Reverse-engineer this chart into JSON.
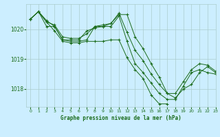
{
  "title": "Graphe pression niveau de la mer (hPa)",
  "bg_color": "#cceeff",
  "grid_color": "#aacccc",
  "line_color": "#1a6b1a",
  "xlim": [
    -0.5,
    23
  ],
  "ylim": [
    1017.4,
    1020.85
  ],
  "yticks": [
    1018,
    1019,
    1020
  ],
  "xticks": [
    0,
    1,
    2,
    3,
    4,
    5,
    6,
    7,
    8,
    9,
    10,
    11,
    12,
    13,
    14,
    15,
    16,
    17,
    18,
    19,
    20,
    21,
    22,
    23
  ],
  "series": [
    [
      1020.35,
      1020.6,
      1020.3,
      1020.1,
      1019.65,
      1019.6,
      1019.6,
      1019.65,
      1020.1,
      1020.1,
      1020.1,
      1020.45,
      1019.6,
      1018.85,
      1018.55,
      1018.2,
      1017.85,
      1017.65,
      1017.65,
      1018.1,
      1018.55,
      1018.65,
      1018.55,
      1018.5
    ],
    [
      1020.35,
      1020.6,
      1020.25,
      1019.95,
      1019.6,
      1019.55,
      1019.55,
      1019.6,
      1019.6,
      1019.6,
      1019.65,
      1019.65,
      1019.05,
      1018.65,
      1018.35,
      1017.8,
      1017.5,
      1017.5,
      null,
      null,
      null,
      null,
      null,
      null
    ],
    [
      1020.35,
      1020.6,
      1020.1,
      1020.1,
      1019.65,
      1019.65,
      1019.65,
      1019.95,
      1020.05,
      1020.1,
      1020.2,
      1020.5,
      1020.5,
      1019.75,
      1019.35,
      1018.85,
      1018.4,
      1017.85,
      1017.7,
      1018.0,
      1018.15,
      1018.55,
      1018.75,
      1018.55
    ],
    [
      1020.35,
      1020.6,
      1020.25,
      1020.15,
      1019.75,
      1019.7,
      1019.7,
      1019.85,
      1020.1,
      1020.15,
      1020.2,
      1020.55,
      1019.9,
      1019.3,
      1018.95,
      1018.5,
      1018.15,
      1017.85,
      1017.85,
      1018.25,
      1018.65,
      1018.85,
      1018.8,
      1018.6
    ]
  ]
}
